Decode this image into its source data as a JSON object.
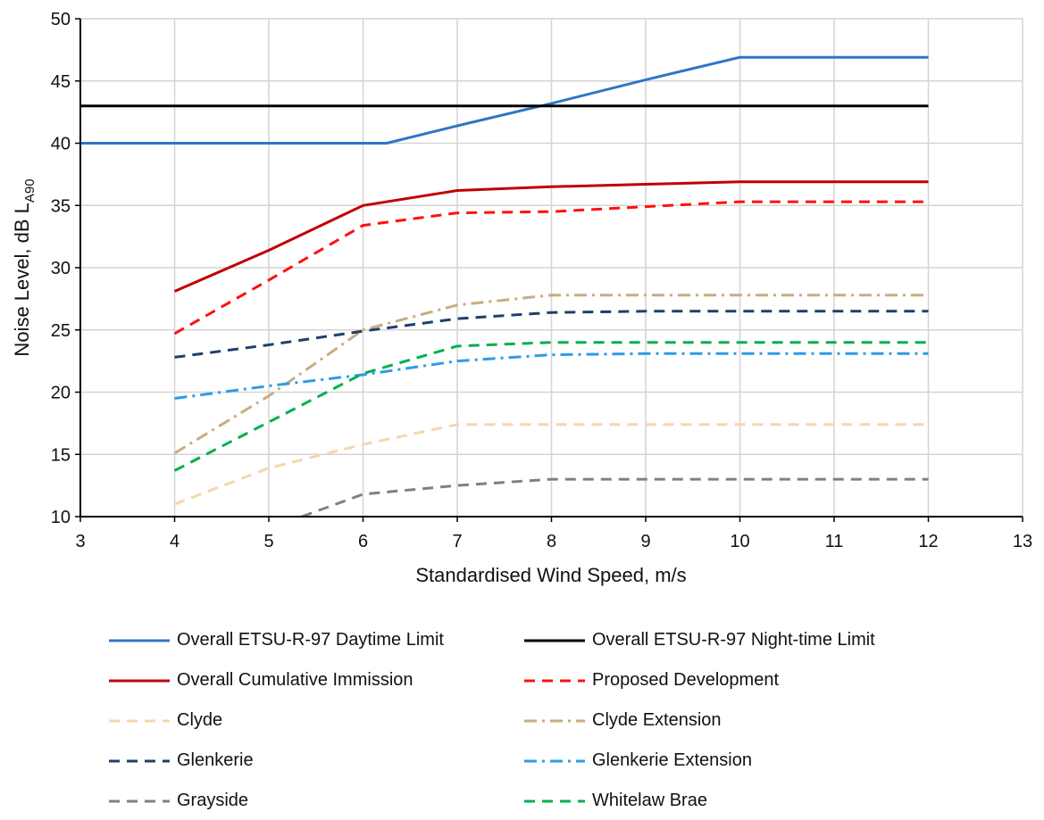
{
  "chart_data": {
    "type": "line",
    "xlabel": "Standardised Wind Speed, m/s",
    "ylabel": {
      "main": "Noise Level, dB L",
      "sub": "A90"
    },
    "xlim": [
      3,
      13
    ],
    "ylim": [
      10,
      50
    ],
    "xticks": [
      "3",
      "4",
      "5",
      "6",
      "7",
      "8",
      "9",
      "10",
      "11",
      "12",
      "13"
    ],
    "yticks": [
      "10",
      "15",
      "20",
      "25",
      "30",
      "35",
      "40",
      "45",
      "50"
    ],
    "grid": true,
    "legend_position": "bottom",
    "series": [
      {
        "name": "Overall ETSU-R-97 Daytime Limit",
        "color": "#2E75C8",
        "dash": "solid",
        "x": [
          3,
          4,
          5,
          6,
          6.25,
          7,
          8,
          9,
          10,
          11,
          12
        ],
        "y": [
          40,
          40,
          40,
          40,
          40,
          41.4,
          43.2,
          45.1,
          46.9,
          46.9,
          46.9
        ]
      },
      {
        "name": "Overall ETSU-R-97 Night-time Limit",
        "color": "#000000",
        "dash": "solid",
        "x": [
          3,
          4,
          5,
          6,
          7,
          8,
          9,
          10,
          11,
          12
        ],
        "y": [
          43,
          43,
          43,
          43,
          43,
          43,
          43,
          43,
          43,
          43
        ]
      },
      {
        "name": "Overall Cumulative Immission",
        "color": "#C00000",
        "dash": "solid",
        "x": [
          4,
          5,
          6,
          7,
          8,
          9,
          10,
          11,
          12
        ],
        "y": [
          28.1,
          31.4,
          35.0,
          36.2,
          36.5,
          36.7,
          36.9,
          36.9,
          36.9
        ]
      },
      {
        "name": "Proposed Development",
        "color": "#FF1010",
        "dash": "dash",
        "x": [
          4,
          5,
          6,
          7,
          8,
          9,
          10,
          11,
          12
        ],
        "y": [
          24.7,
          29.0,
          33.4,
          34.4,
          34.5,
          34.9,
          35.3,
          35.3,
          35.3
        ]
      },
      {
        "name": "Clyde",
        "color": "#F5D7A8",
        "dash": "dash",
        "x": [
          4,
          5,
          6,
          7,
          8,
          9,
          10,
          11,
          12
        ],
        "y": [
          11.0,
          13.9,
          15.8,
          17.4,
          17.4,
          17.4,
          17.4,
          17.4,
          17.4
        ]
      },
      {
        "name": "Clyde Extension",
        "color": "#C8AD7F",
        "dash": "dashdot",
        "x": [
          4,
          5,
          6,
          7,
          8,
          9,
          10,
          11,
          12
        ],
        "y": [
          15.1,
          19.7,
          25.0,
          27.0,
          27.8,
          27.8,
          27.8,
          27.8,
          27.8
        ]
      },
      {
        "name": "Glenkerie",
        "color": "#1F3F6B",
        "dash": "dash",
        "x": [
          4,
          5,
          6,
          7,
          8,
          9,
          10,
          11,
          12
        ],
        "y": [
          22.8,
          23.8,
          24.9,
          25.9,
          26.4,
          26.5,
          26.5,
          26.5,
          26.5
        ]
      },
      {
        "name": "Glenkerie Extension",
        "color": "#2E9BE6",
        "dash": "dashdot",
        "x": [
          4,
          5,
          6,
          7,
          8,
          9,
          10,
          11,
          12
        ],
        "y": [
          19.5,
          20.5,
          21.4,
          22.5,
          23.0,
          23.1,
          23.1,
          23.1,
          23.1
        ]
      },
      {
        "name": "Grayside",
        "color": "#808080",
        "dash": "dash",
        "x": [
          5.35,
          6,
          7,
          8,
          9,
          10,
          11,
          12
        ],
        "y": [
          10.0,
          11.8,
          12.5,
          13.0,
          13.0,
          13.0,
          13.0,
          13.0
        ]
      },
      {
        "name": "Whitelaw Brae",
        "color": "#00B050",
        "dash": "dash",
        "x": [
          4,
          5,
          6,
          7,
          8,
          9,
          10,
          11,
          12
        ],
        "y": [
          13.7,
          17.6,
          21.5,
          23.7,
          24.0,
          24.0,
          24.0,
          24.0,
          24.0
        ]
      }
    ]
  }
}
